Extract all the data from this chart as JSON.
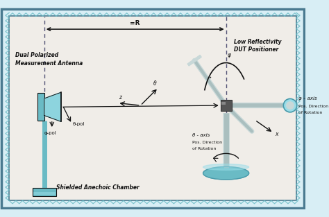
{
  "bg_color": "#d8eef5",
  "border_color": "#4a7a90",
  "inner_bg": "#f0ede8",
  "teal_color": "#6abbc5",
  "teal_dark": "#4a9aaa",
  "gray_light": "#c8d8d8",
  "gray_med": "#888888",
  "dark": "#111111",
  "dashed_color": "#555577",
  "label_dual_line1": "Dual Polarized",
  "label_dual_line2": "Measurement Antenna",
  "label_shielded": "Shielded Anechoic Chamber",
  "label_low_refl_line1": "Low Reflectivity",
  "label_low_refl_line2": "DUT Positioner",
  "label_theta_pol": "θ-pol",
  "label_phi_pol": "φ-pol",
  "label_theta": "θ",
  "label_z": "z",
  "label_phi": "φ",
  "label_phi_axis": "φ – axis",
  "label_phi_pos": "Pos. Direction",
  "label_phi_rot": "of Rotation",
  "label_x": "x",
  "label_theta_axis": "θ - axis",
  "label_theta_pos": "Pos. Direction",
  "label_theta_rot": "of Rotation",
  "label_R": "=R"
}
